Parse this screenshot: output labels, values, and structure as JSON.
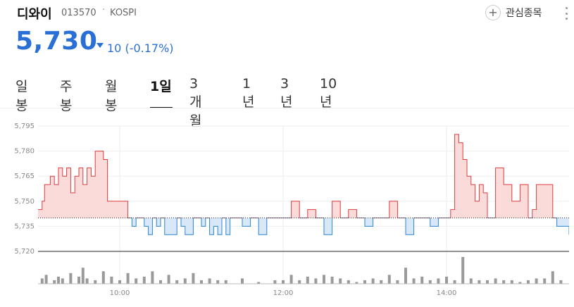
{
  "stock": {
    "name": "디와이",
    "code": "013570",
    "separator": "·",
    "market": "KOSPI",
    "price": "5,730",
    "change": "10 (-0.17%)",
    "direction": "down",
    "colors": {
      "down": "#2a6fd6",
      "up": "#e03c3c"
    }
  },
  "actions": {
    "favorite_label": "관심종목",
    "favorite_icon": "plus-icon",
    "more_icon": "vertical-dots-icon"
  },
  "tabs": [
    {
      "label": "일봉",
      "active": false
    },
    {
      "label": "주봉",
      "active": false
    },
    {
      "label": "월봉",
      "active": false
    },
    {
      "label": "1일",
      "active": true
    },
    {
      "label": "3개월",
      "active": false
    },
    {
      "label": "1년",
      "active": false
    },
    {
      "label": "3년",
      "active": false
    },
    {
      "label": "10년",
      "active": false
    }
  ],
  "chart_data": {
    "type": "area",
    "title": "",
    "xlabel": "",
    "ylabel": "",
    "baseline": 5740,
    "ylim": [
      5720,
      5795
    ],
    "y_ticks": [
      "5,795",
      "5,780",
      "5,765",
      "5,750",
      "5,735",
      "5,720"
    ],
    "y_tick_values": [
      5795,
      5780,
      5765,
      5750,
      5735,
      5720
    ],
    "x_ticks": [
      "10:00",
      "12:00",
      "14:00"
    ],
    "x_tick_values_hours": [
      10,
      12,
      14
    ],
    "x_range_hours": [
      9.0,
      15.5
    ],
    "colors": {
      "up_line": "#e03c3c",
      "up_fill": "#fbdada",
      "down_line": "#2a86d6",
      "down_fill": "#d8e8f8",
      "volume": "#9a9a9a"
    },
    "price_series": {
      "x_hours": [
        9.0,
        9.05,
        9.08,
        9.15,
        9.2,
        9.25,
        9.3,
        9.35,
        9.4,
        9.45,
        9.5,
        9.55,
        9.6,
        9.65,
        9.7,
        9.75,
        9.8,
        9.85,
        9.9,
        9.95,
        10.0,
        10.05,
        10.1,
        10.15,
        10.2,
        10.3,
        10.35,
        10.4,
        10.45,
        10.5,
        10.55,
        10.6,
        10.65,
        10.7,
        10.75,
        10.8,
        10.9,
        11.0,
        11.05,
        11.1,
        11.15,
        11.2,
        11.25,
        11.3,
        11.35,
        11.4,
        11.5,
        11.6,
        11.7,
        11.8,
        11.9,
        12.0,
        12.1,
        12.2,
        12.3,
        12.4,
        12.5,
        12.6,
        12.7,
        12.8,
        12.9,
        13.0,
        13.1,
        13.2,
        13.3,
        13.4,
        13.5,
        13.6,
        13.7,
        13.8,
        13.9,
        14.0,
        14.05,
        14.1,
        14.15,
        14.2,
        14.25,
        14.3,
        14.35,
        14.4,
        14.45,
        14.5,
        14.6,
        14.7,
        14.8,
        14.9,
        15.0,
        15.05,
        15.1,
        15.15,
        15.2,
        15.25,
        15.3,
        15.35,
        15.4,
        15.45,
        15.5
      ],
      "values": [
        5745,
        5750,
        5760,
        5765,
        5760,
        5770,
        5765,
        5770,
        5755,
        5765,
        5770,
        5760,
        5770,
        5765,
        5780,
        5780,
        5775,
        5750,
        5750,
        5750,
        5750,
        5750,
        5740,
        5735,
        5740,
        5735,
        5730,
        5740,
        5735,
        5740,
        5730,
        5730,
        5730,
        5740,
        5735,
        5730,
        5740,
        5735,
        5740,
        5730,
        5735,
        5730,
        5740,
        5730,
        5740,
        5740,
        5735,
        5740,
        5730,
        5740,
        5740,
        5740,
        5750,
        5740,
        5745,
        5740,
        5730,
        5750,
        5740,
        5745,
        5740,
        5735,
        5740,
        5740,
        5750,
        5740,
        5730,
        5740,
        5740,
        5735,
        5740,
        5740,
        5745,
        5790,
        5785,
        5775,
        5765,
        5760,
        5750,
        5760,
        5755,
        5740,
        5770,
        5760,
        5750,
        5760,
        5740,
        5745,
        5760,
        5760,
        5760,
        5760,
        5740,
        5735,
        5735,
        5735,
        5730
      ]
    },
    "volume_series": {
      "x_hours": [
        9.05,
        9.1,
        9.2,
        9.25,
        9.3,
        9.4,
        9.5,
        9.55,
        9.6,
        9.7,
        9.8,
        9.9,
        10.0,
        10.1,
        10.2,
        10.3,
        10.4,
        10.5,
        10.6,
        10.7,
        10.8,
        10.9,
        11.0,
        11.1,
        11.2,
        11.3,
        11.5,
        11.7,
        11.9,
        12.0,
        12.1,
        12.2,
        12.3,
        12.4,
        12.5,
        12.6,
        12.7,
        12.8,
        12.9,
        13.0,
        13.1,
        13.2,
        13.3,
        13.4,
        13.5,
        13.6,
        13.7,
        13.8,
        13.9,
        14.0,
        14.1,
        14.2,
        14.3,
        14.4,
        14.5,
        14.6,
        14.7,
        14.8,
        14.9,
        15.0,
        15.1,
        15.2,
        15.3,
        15.4
      ],
      "values": [
        3,
        5,
        2,
        4,
        3,
        6,
        4,
        9,
        3,
        2,
        7,
        4,
        2,
        6,
        3,
        4,
        7,
        2,
        5,
        2,
        3,
        6,
        2,
        3,
        2,
        2,
        3,
        1,
        2,
        2,
        5,
        2,
        4,
        3,
        5,
        4,
        3,
        2,
        1,
        2,
        3,
        2,
        5,
        2,
        9,
        3,
        4,
        2,
        3,
        4,
        2,
        15,
        3,
        2,
        2,
        3,
        2,
        2,
        1,
        2,
        3,
        3,
        7,
        2
      ]
    }
  }
}
